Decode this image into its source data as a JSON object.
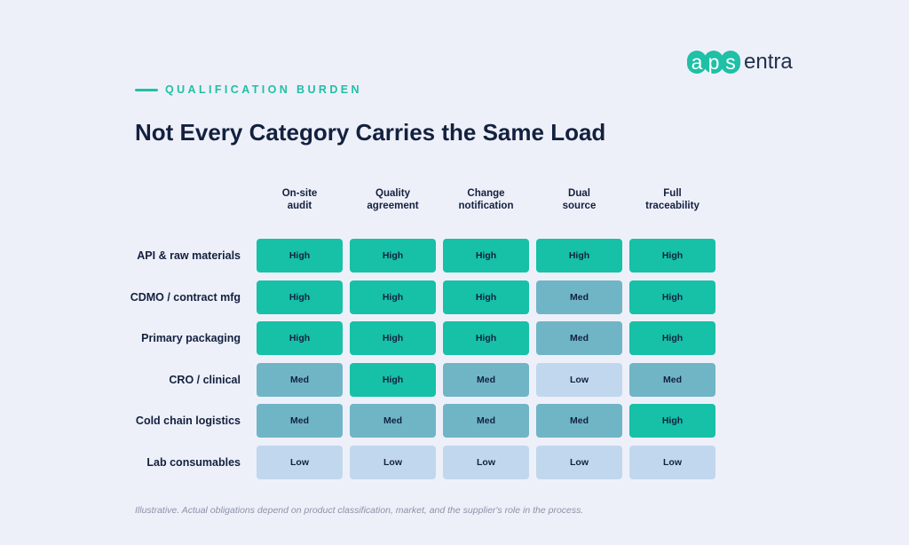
{
  "brand": {
    "logo_part1": [
      "a",
      "p",
      "s"
    ],
    "logo_part2": "entra"
  },
  "eyebrow": "QUALIFICATION BURDEN",
  "title": "Not Every Category Carries the Same Load",
  "columns": [
    [
      "On-site",
      "audit"
    ],
    [
      "Quality",
      "agreement"
    ],
    [
      "Change",
      "notification"
    ],
    [
      "Dual",
      "source"
    ],
    [
      "Full",
      "traceability"
    ]
  ],
  "rows": [
    {
      "label": "API & raw materials",
      "values": [
        "High",
        "High",
        "High",
        "High",
        "High"
      ]
    },
    {
      "label": "CDMO / contract mfg",
      "values": [
        "High",
        "High",
        "High",
        "Med",
        "High"
      ]
    },
    {
      "label": "Primary packaging",
      "values": [
        "High",
        "High",
        "High",
        "Med",
        "High"
      ]
    },
    {
      "label": "CRO / clinical",
      "values": [
        "Med",
        "High",
        "Med",
        "Low",
        "Med"
      ]
    },
    {
      "label": "Cold chain logistics",
      "values": [
        "Med",
        "Med",
        "Med",
        "Med",
        "High"
      ]
    },
    {
      "label": "Lab consumables",
      "values": [
        "Low",
        "Low",
        "Low",
        "Low",
        "Low"
      ]
    }
  ],
  "legend_colors": {
    "High": "#16c1a7",
    "Med": "#6fb5c6",
    "Low": "#c1d7ee"
  },
  "footnote": "Illustrative. Actual obligations depend on product classification, market, and the supplier's role in the process."
}
